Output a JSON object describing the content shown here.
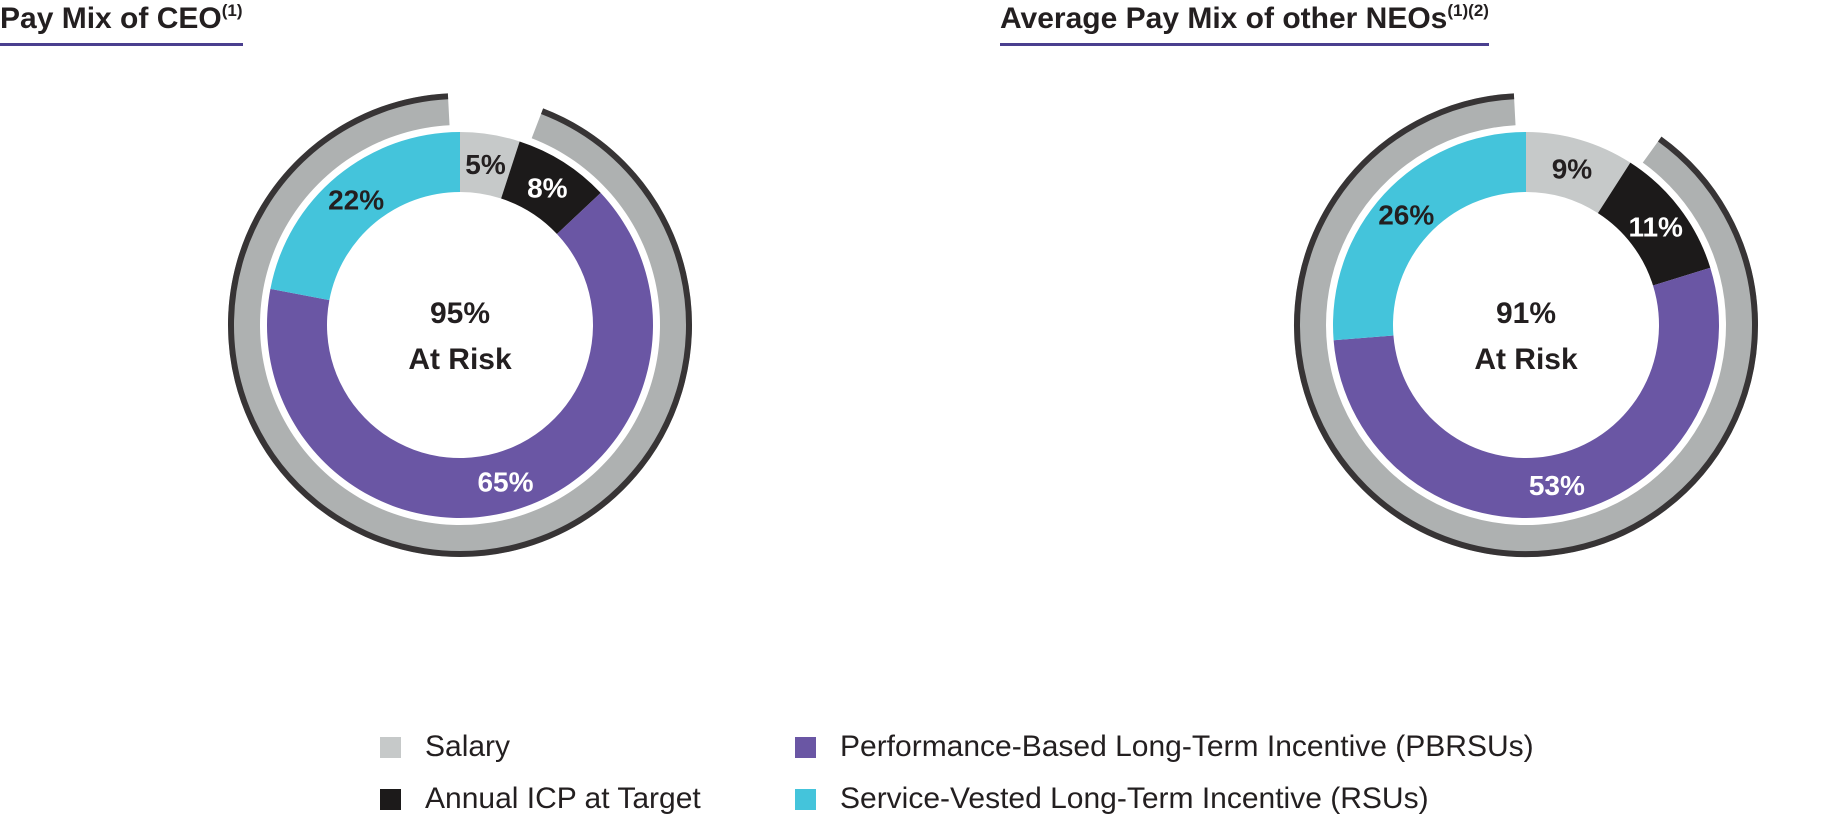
{
  "colors": {
    "salary": "#c6c9c9",
    "icp": "#1c1a1a",
    "pbrsu": "#6a56a4",
    "rsu": "#44c4db",
    "ring_gray": "#aeb1b1",
    "ring_dark": "#373435",
    "title_underline": "#4a3f8f"
  },
  "chart_data": [
    {
      "type": "pie",
      "title": "Pay Mix of CEO",
      "title_sup": "(1)",
      "center_value": "95%",
      "center_label": "At Risk",
      "slices": [
        {
          "key": "salary",
          "label": "Salary",
          "value": 5,
          "display": "5%"
        },
        {
          "key": "icp",
          "label": "Annual ICP at Target",
          "value": 8,
          "display": "8%"
        },
        {
          "key": "pbrsu",
          "label": "Performance-Based Long-Term Incentive (PBRSUs)",
          "value": 65,
          "display": "65%"
        },
        {
          "key": "rsu",
          "label": "Service-Vested Long-Term Incentive (RSUs)",
          "value": 22,
          "display": "22%"
        }
      ]
    },
    {
      "type": "pie",
      "title": "Average Pay Mix of other NEOs",
      "title_sup": "(1)(2)",
      "center_value": "91%",
      "center_label": "At Risk",
      "slices": [
        {
          "key": "salary",
          "label": "Salary",
          "value": 9,
          "display": "9%"
        },
        {
          "key": "icp",
          "label": "Annual ICP at Target",
          "value": 11,
          "display": "11%"
        },
        {
          "key": "pbrsu",
          "label": "Performance-Based Long-Term Incentive (PBRSUs)",
          "value": 53,
          "display": "53%"
        },
        {
          "key": "rsu",
          "label": "Service-Vested Long-Term Incentive (RSUs)",
          "value": 26,
          "display": "26%"
        }
      ]
    }
  ],
  "legend": [
    {
      "key": "salary",
      "label": "Salary"
    },
    {
      "key": "icp",
      "label": "Annual ICP at Target"
    },
    {
      "key": "pbrsu",
      "label": "Performance-Based Long-Term Incentive (PBRSUs)"
    },
    {
      "key": "rsu",
      "label": "Service-Vested Long-Term Incentive (RSUs)"
    }
  ]
}
